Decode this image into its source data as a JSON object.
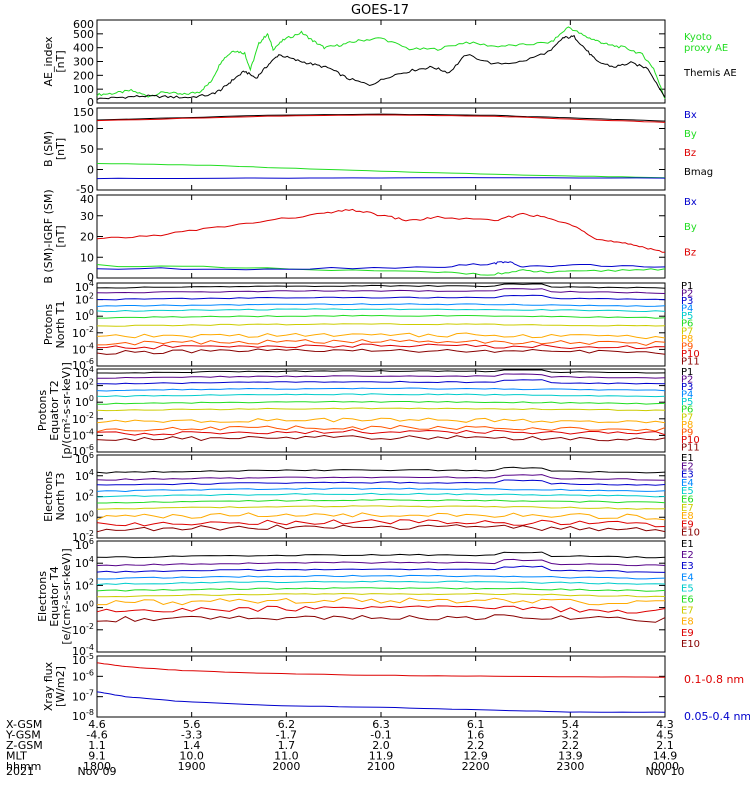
{
  "title": "GOES-17",
  "colors": {
    "black": "#000000",
    "red": "#dd0000",
    "green": "#22dd22",
    "blue": "#0000cc"
  },
  "time_axis": {
    "ticks": [
      "1800",
      "1900",
      "2000",
      "2100",
      "2200",
      "2300",
      "0000"
    ]
  },
  "bottom_table": {
    "rows": [
      {
        "label": "X-GSM",
        "values": [
          "4.6",
          "5.6",
          "6.2",
          "6.3",
          "6.1",
          "5.4",
          "4.3"
        ]
      },
      {
        "label": "Y-GSM",
        "values": [
          "-4.6",
          "-3.3",
          "-1.7",
          "-0.1",
          "1.6",
          "3.2",
          "4.5"
        ]
      },
      {
        "label": "Z-GSM",
        "values": [
          "1.1",
          "1.4",
          "1.7",
          "2.0",
          "2.2",
          "2.2",
          "2.1"
        ]
      },
      {
        "label": "MLT",
        "values": [
          "9.1",
          "10.0",
          "11.0",
          "11.9",
          "12.9",
          "13.9",
          "14.9"
        ]
      },
      {
        "label": "hhmm",
        "values": [
          "1800",
          "1900",
          "2000",
          "2100",
          "2200",
          "2300",
          "0000"
        ]
      }
    ],
    "year": "2021",
    "date_start": "Nov 09",
    "date_end": "Nov 10"
  },
  "chart_data": [
    {
      "type": "line",
      "ylabel": [
        "AE_index",
        "[nT]"
      ],
      "ylim": [
        0,
        600
      ],
      "yticks": [
        "600",
        "500",
        "400",
        "300",
        "200",
        "100",
        "0"
      ],
      "legend": [
        {
          "text": "Kyoto",
          "color": "#22dd22"
        },
        {
          "text": "proxy AE",
          "color": "#22dd22"
        },
        {
          "text": "Themis AE",
          "color": "#000000"
        }
      ],
      "series": [
        {
          "name": "Kyoto proxy AE",
          "color": "#22dd22",
          "x": [
            0,
            0.03,
            0.06,
            0.09,
            0.12,
            0.15,
            0.18,
            0.2,
            0.22,
            0.24,
            0.26,
            0.27,
            0.285,
            0.3,
            0.31,
            0.33,
            0.36,
            0.38,
            0.4,
            0.43,
            0.46,
            0.5,
            0.55,
            0.6,
            0.65,
            0.7,
            0.75,
            0.8,
            0.83,
            0.86,
            0.88,
            0.9,
            0.93,
            0.96,
            0.98,
            1.0
          ],
          "y": [
            60,
            70,
            90,
            50,
            80,
            60,
            80,
            150,
            310,
            380,
            360,
            240,
            430,
            500,
            390,
            460,
            510,
            450,
            400,
            420,
            450,
            470,
            390,
            390,
            440,
            410,
            420,
            440,
            550,
            480,
            450,
            420,
            400,
            350,
            250,
            30
          ]
        },
        {
          "name": "Themis AE",
          "color": "#000000",
          "x": [
            0,
            0.04,
            0.08,
            0.12,
            0.16,
            0.2,
            0.22,
            0.24,
            0.26,
            0.28,
            0.3,
            0.32,
            0.35,
            0.38,
            0.41,
            0.44,
            0.48,
            0.52,
            0.56,
            0.59,
            0.62,
            0.65,
            0.7,
            0.75,
            0.8,
            0.82,
            0.84,
            0.86,
            0.88,
            0.91,
            0.94,
            0.97,
            1.0
          ],
          "y": [
            30,
            40,
            50,
            45,
            40,
            60,
            100,
            170,
            230,
            180,
            270,
            350,
            310,
            280,
            250,
            180,
            130,
            200,
            240,
            260,
            220,
            350,
            280,
            300,
            380,
            470,
            480,
            390,
            300,
            260,
            290,
            250,
            40
          ]
        }
      ]
    },
    {
      "type": "line",
      "ylabel": [
        "B (SM)",
        "[nT]"
      ],
      "ylim": [
        -50,
        150
      ],
      "yticks": [
        "150",
        "100",
        "50",
        "0",
        "-50"
      ],
      "legend": [
        {
          "text": "Bx",
          "color": "#0000cc"
        },
        {
          "text": "By",
          "color": "#22dd22"
        },
        {
          "text": "Bz",
          "color": "#dd0000"
        },
        {
          "text": "Bmag",
          "color": "#000000"
        }
      ],
      "series": [
        {
          "name": "Bmag",
          "color": "#000000",
          "x": [
            0,
            0.3,
            0.5,
            0.7,
            0.85,
            1.0
          ],
          "y": [
            121,
            132,
            135,
            132,
            125,
            118
          ]
        },
        {
          "name": "Bz",
          "color": "#dd0000",
          "x": [
            0,
            0.3,
            0.5,
            0.7,
            0.85,
            1.0
          ],
          "y": [
            119,
            130,
            133,
            130,
            122,
            115
          ]
        },
        {
          "name": "By",
          "color": "#22dd22",
          "x": [
            0,
            0.2,
            0.4,
            0.6,
            0.8,
            1.0
          ],
          "y": [
            15,
            10,
            0,
            -8,
            -15,
            -20
          ]
        },
        {
          "name": "Bx",
          "color": "#0000cc",
          "x": [
            0,
            0.3,
            0.6,
            1.0
          ],
          "y": [
            -22,
            -21,
            -20,
            -21
          ]
        }
      ]
    },
    {
      "type": "line",
      "ylabel": [
        "B (SM)-IGRF (SM)",
        "[nT]"
      ],
      "ylim": [
        -5,
        40
      ],
      "yticks": [
        "40",
        "30",
        "20",
        "10",
        "0"
      ],
      "legend": [
        {
          "text": "Bx",
          "color": "#0000cc"
        },
        {
          "text": "By",
          "color": "#22dd22"
        },
        {
          "text": "Bz",
          "color": "#dd0000"
        }
      ],
      "series": [
        {
          "name": "Bz",
          "color": "#dd0000",
          "x": [
            0,
            0.1,
            0.2,
            0.3,
            0.4,
            0.45,
            0.5,
            0.55,
            0.6,
            0.7,
            0.75,
            0.8,
            0.85,
            0.88,
            0.92,
            0.96,
            1.0
          ],
          "y": [
            16,
            18,
            22,
            26,
            30,
            32,
            29,
            26,
            28,
            26,
            30,
            27,
            22,
            16,
            14,
            12,
            9
          ]
        },
        {
          "name": "By",
          "color": "#22dd22",
          "x": [
            0,
            0.3,
            0.6,
            0.7,
            0.75,
            0.8,
            0.9,
            1.0
          ],
          "y": [
            2,
            0,
            -2,
            -3,
            -1,
            -2,
            -1,
            0
          ]
        },
        {
          "name": "Bx",
          "color": "#0000cc",
          "x": [
            0,
            0.3,
            0.6,
            0.7,
            0.72,
            0.75,
            0.85,
            1.0
          ],
          "y": [
            0,
            0,
            1,
            3,
            4,
            1,
            2,
            1
          ]
        }
      ]
    },
    {
      "type": "line",
      "log": true,
      "ylabel": [
        "Protons",
        "North T1"
      ],
      "yticks": [
        "10^4",
        "10^2",
        "10^0",
        "10^-2",
        "10^-4",
        "10^-6"
      ],
      "legend": [
        {
          "text": "P1",
          "color": "#000000"
        },
        {
          "text": "P2",
          "color": "#550088"
        },
        {
          "text": "P3",
          "color": "#0000cc"
        },
        {
          "text": "P4",
          "color": "#0088ff"
        },
        {
          "text": "P5",
          "color": "#00cccc"
        },
        {
          "text": "P6",
          "color": "#22dd22"
        },
        {
          "text": "P7",
          "color": "#cccc00"
        },
        {
          "text": "P8",
          "color": "#ffaa00"
        },
        {
          "text": "P9",
          "color": "#ff5500"
        },
        {
          "text": "P10",
          "color": "#dd0000"
        },
        {
          "text": "P11",
          "color": "#880000"
        }
      ],
      "levels_log": [
        3.4,
        2.8,
        2.0,
        1.2,
        0.6,
        -0.2,
        -1.2,
        -2.5,
        -3.3,
        -3.8,
        -4.4
      ]
    },
    {
      "type": "line",
      "log": true,
      "ylabel": [
        "Protons",
        "Equator T2",
        "[p/(cm²-s-sr-keV)]"
      ],
      "yticks": [
        "10^4",
        "10^2",
        "10^0",
        "10^-2",
        "10^-4",
        "10^-6"
      ],
      "legend": [
        {
          "text": "P1",
          "color": "#000000"
        },
        {
          "text": "P2",
          "color": "#550088"
        },
        {
          "text": "P3",
          "color": "#0000cc"
        },
        {
          "text": "P4",
          "color": "#0088ff"
        },
        {
          "text": "P5",
          "color": "#00cccc"
        },
        {
          "text": "P6",
          "color": "#22dd22"
        },
        {
          "text": "P7",
          "color": "#cccc00"
        },
        {
          "text": "P8",
          "color": "#ffaa00"
        },
        {
          "text": "P9",
          "color": "#ff5500"
        },
        {
          "text": "P10",
          "color": "#dd0000"
        },
        {
          "text": "P11",
          "color": "#880000"
        }
      ],
      "levels_log": [
        3.5,
        2.9,
        2.2,
        1.4,
        0.7,
        -0.2,
        -1.0,
        -2.4,
        -3.3,
        -3.8,
        -4.5
      ]
    },
    {
      "type": "line",
      "log": true,
      "ylabel": [
        "Electrons",
        "North T3"
      ],
      "yticks": [
        "10^6",
        "10^4",
        "10^2",
        "10^0",
        "10^-2"
      ],
      "legend": [
        {
          "text": "E1",
          "color": "#000000"
        },
        {
          "text": "E2",
          "color": "#550088"
        },
        {
          "text": "E3",
          "color": "#0000cc"
        },
        {
          "text": "E4",
          "color": "#0088ff"
        },
        {
          "text": "E5",
          "color": "#00cccc"
        },
        {
          "text": "E6",
          "color": "#22dd22"
        },
        {
          "text": "E7",
          "color": "#cccc00"
        },
        {
          "text": "E8",
          "color": "#ffaa00"
        },
        {
          "text": "E9",
          "color": "#dd0000"
        },
        {
          "text": "E10",
          "color": "#880000"
        }
      ],
      "levels_log": [
        4.3,
        3.6,
        3.1,
        2.5,
        2.0,
        1.4,
        0.8,
        0.0,
        -0.7,
        -1.2
      ]
    },
    {
      "type": "line",
      "log": true,
      "ylabel": [
        "Electrons",
        "Equator T4",
        "[e/(cm²-s-sr-keV)]"
      ],
      "yticks": [
        "10^6",
        "10^4",
        "10^2",
        "10^0",
        "10^-2",
        "10^-4"
      ],
      "legend": [
        {
          "text": "E1",
          "color": "#000000"
        },
        {
          "text": "E2",
          "color": "#550088"
        },
        {
          "text": "E3",
          "color": "#0000cc"
        },
        {
          "text": "E4",
          "color": "#0088ff"
        },
        {
          "text": "E5",
          "color": "#00cccc"
        },
        {
          "text": "E6",
          "color": "#22dd22"
        },
        {
          "text": "E7",
          "color": "#cccc00"
        },
        {
          "text": "E8",
          "color": "#ffaa00"
        },
        {
          "text": "E9",
          "color": "#dd0000"
        },
        {
          "text": "E10",
          "color": "#880000"
        }
      ],
      "levels_log": [
        4.5,
        3.8,
        3.2,
        2.6,
        2.1,
        1.5,
        1.0,
        0.4,
        -0.3,
        -1.1
      ]
    },
    {
      "type": "line",
      "log": true,
      "ylabel": [
        "Xray flux",
        "[W/m2]"
      ],
      "yticks": [
        "10^-5",
        "10^-6",
        "10^-7",
        "10^-8"
      ],
      "legend": [
        {
          "text": "0.1-0.8 nm",
          "color": "#dd0000"
        },
        {
          "text": "0.05-0.4 nm",
          "color": "#0000cc"
        }
      ],
      "series": [
        {
          "name": "0.1-0.8 nm",
          "color": "#dd0000",
          "x": [
            0,
            0.05,
            0.15,
            0.3,
            0.5,
            0.7,
            1.0
          ],
          "y": [
            -5.3,
            -5.5,
            -5.7,
            -5.85,
            -5.95,
            -6.0,
            -6.05
          ]
        },
        {
          "name": "0.05-0.4 nm",
          "color": "#0000cc",
          "x": [
            0,
            0.05,
            0.15,
            0.3,
            0.5,
            0.7,
            0.85,
            1.0
          ],
          "y": [
            -6.8,
            -7.05,
            -7.3,
            -7.5,
            -7.6,
            -7.75,
            -7.85,
            -7.85
          ]
        }
      ]
    }
  ]
}
